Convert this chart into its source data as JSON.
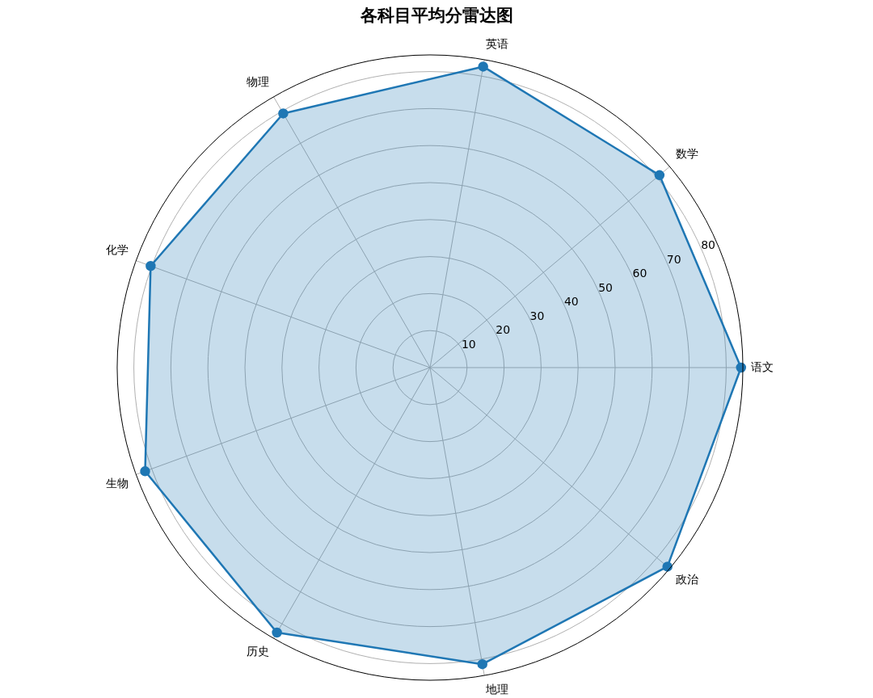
{
  "chart_data": {
    "type": "radar",
    "title": "各科目平均分雷达图",
    "categories": [
      "英语",
      "数学",
      "语文",
      "政治",
      "地理",
      "历史",
      "生物",
      "化学",
      "物理"
    ],
    "series": [
      {
        "color": "#1f77b4",
        "values": [
          82.6,
          80.9,
          84,
          83.7,
          81.4,
          82.7,
          81.9,
          80.3,
          79.3
        ]
      }
    ],
    "ylim": [
      0,
      84.5
    ],
    "yticks": [
      10,
      20,
      30,
      40,
      50,
      60,
      70,
      80
    ],
    "grid": true,
    "marker": "circle",
    "line_style": "solid"
  }
}
